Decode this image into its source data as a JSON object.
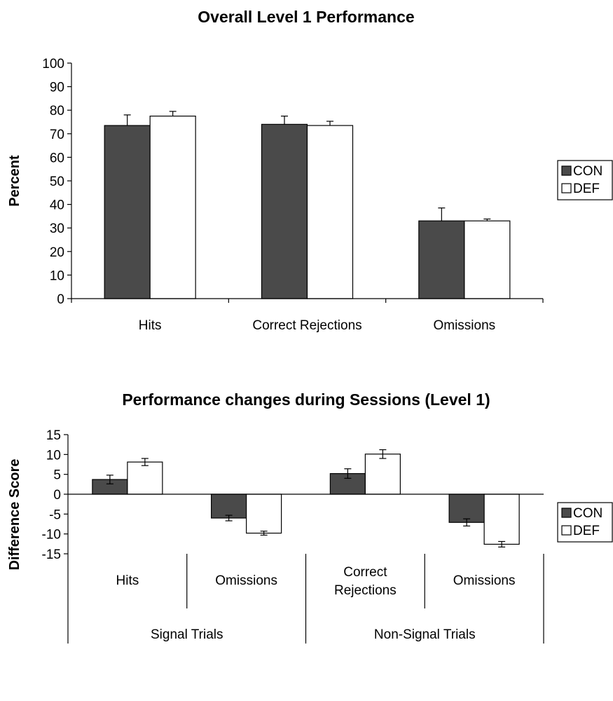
{
  "chart_data": [
    {
      "type": "bar",
      "title": "Overall Level 1 Performance",
      "xlabel": "",
      "ylabel": "Percent",
      "ylim": [
        0,
        100
      ],
      "yticks": [
        0,
        10,
        20,
        30,
        40,
        50,
        60,
        70,
        80,
        90,
        100
      ],
      "categories": [
        "Hits",
        "Correct Rejections",
        "Omissions"
      ],
      "series": [
        {
          "name": "CON",
          "color": "#4a4a4a",
          "values": [
            73.5,
            74,
            33
          ],
          "errors": [
            4.5,
            3.5,
            5.5
          ]
        },
        {
          "name": "DEF",
          "color": "#ffffff",
          "values": [
            77.5,
            73.5,
            33
          ],
          "errors": [
            2,
            1.8,
            0.8
          ]
        }
      ],
      "grid": false,
      "legend": "right"
    },
    {
      "type": "bar",
      "title": "Performance changes during Sessions (Level 1)",
      "xlabel": "",
      "ylabel": "Difference Score",
      "ylim": [
        -15,
        15
      ],
      "yticks": [
        -15,
        -10,
        -5,
        0,
        5,
        10,
        15
      ],
      "categories": [
        "Hits",
        "Omissions",
        "Correct Rejections",
        "Omissions"
      ],
      "groups": [
        {
          "label": "Signal Trials",
          "span": [
            0,
            1
          ]
        },
        {
          "label": "Non-Signal Trials",
          "span": [
            2,
            3
          ]
        }
      ],
      "series": [
        {
          "name": "CON",
          "color": "#4a4a4a",
          "values": [
            3.7,
            -6,
            5.2,
            -7.1
          ],
          "errors": [
            1.1,
            0.7,
            1.2,
            0.9
          ]
        },
        {
          "name": "DEF",
          "color": "#ffffff",
          "values": [
            8.1,
            -9.8,
            10.1,
            -12.6
          ],
          "errors": [
            0.9,
            0.5,
            1.1,
            0.7
          ]
        }
      ],
      "grid": false,
      "legend": "right"
    }
  ]
}
